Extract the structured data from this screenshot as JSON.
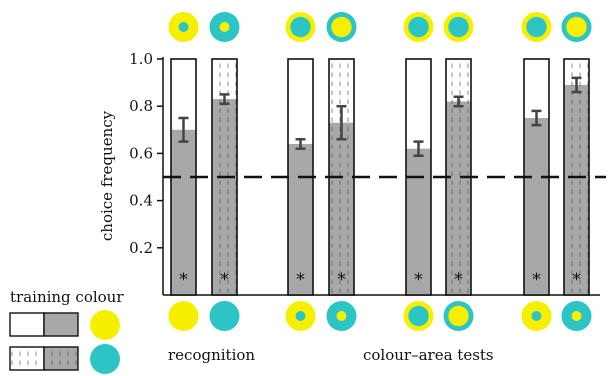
{
  "chart_data": {
    "type": "bar",
    "ylabel": "choice frequency",
    "ylim": [
      0,
      1
    ],
    "yticks": [
      "0.2",
      "0.4",
      "0.6",
      "0.8",
      "1.0"
    ],
    "reference_line": 0.5,
    "bars": [
      {
        "group": 1,
        "pattern": "plain",
        "value": 0.7,
        "error": 0.05,
        "mark": "*"
      },
      {
        "group": 1,
        "pattern": "dashed",
        "value": 0.83,
        "error": 0.02,
        "mark": "*"
      },
      {
        "group": 2,
        "pattern": "plain",
        "value": 0.64,
        "error": 0.02,
        "mark": "*"
      },
      {
        "group": 2,
        "pattern": "dashed",
        "value": 0.73,
        "error": 0.07,
        "mark": "*"
      },
      {
        "group": 3,
        "pattern": "plain",
        "value": 0.62,
        "error": 0.03,
        "mark": "*"
      },
      {
        "group": 3,
        "pattern": "dashed",
        "value": 0.82,
        "error": 0.02,
        "mark": "*"
      },
      {
        "group": 4,
        "pattern": "plain",
        "value": 0.75,
        "error": 0.03,
        "mark": "*"
      },
      {
        "group": 4,
        "pattern": "dashed",
        "value": 0.89,
        "error": 0.03,
        "mark": "*"
      }
    ],
    "stimuli_top": [
      {
        "outer": "yellow",
        "inner": "cyan",
        "inner_size": "small"
      },
      {
        "outer": "cyan",
        "inner": "yellow",
        "inner_size": "small"
      },
      {
        "outer": "yellow",
        "inner": "cyan",
        "inner_size": "large"
      },
      {
        "outer": "cyan",
        "inner": "yellow",
        "inner_size": "large"
      },
      {
        "outer": "yellow",
        "inner": "cyan",
        "inner_size": "large"
      },
      {
        "outer": "yellow",
        "inner": "cyan",
        "inner_size": "large"
      },
      {
        "outer": "yellow",
        "inner": "cyan",
        "inner_size": "large"
      },
      {
        "outer": "cyan",
        "inner": "yellow",
        "inner_size": "large"
      }
    ],
    "stimuli_bottom": [
      {
        "outer": "yellow",
        "inner": null,
        "inner_size": "none"
      },
      {
        "outer": "cyan",
        "inner": null,
        "inner_size": "none"
      },
      {
        "outer": "yellow",
        "inner": "cyan",
        "inner_size": "small"
      },
      {
        "outer": "cyan",
        "inner": "yellow",
        "inner_size": "small"
      },
      {
        "outer": "yellow",
        "inner": "cyan",
        "inner_size": "large"
      },
      {
        "outer": "cyan",
        "inner": "yellow",
        "inner_size": "large"
      },
      {
        "outer": "yellow",
        "inner": "cyan",
        "inner_size": "small"
      },
      {
        "outer": "cyan",
        "inner": "yellow",
        "inner_size": "small"
      }
    ],
    "group_labels": [
      "recognition",
      "colour–area tests"
    ],
    "legend": {
      "title": "training colour",
      "entries": [
        {
          "pattern": "plain",
          "colour": "yellow"
        },
        {
          "pattern": "dashed",
          "colour": "cyan"
        }
      ]
    },
    "colors": {
      "yellow": "#f6f000",
      "cyan": "#2cc4c4",
      "bar_fill": "#a8a8a8",
      "bar_unfilled": "#ffffff"
    }
  }
}
